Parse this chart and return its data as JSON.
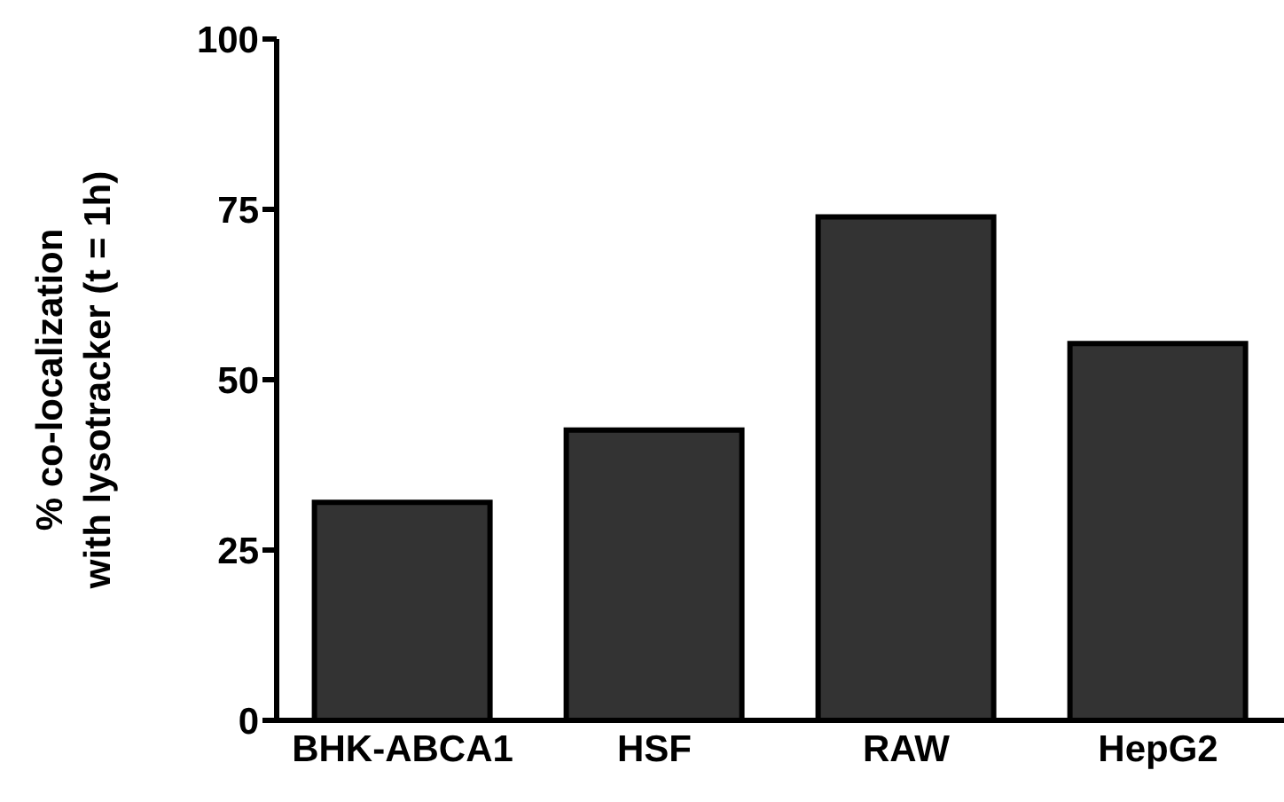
{
  "chart_data": {
    "type": "bar",
    "ylabel": "% co-localization\nwith lysotracker (t = 1h)",
    "categories": [
      "BHK-ABCA1",
      "HSF",
      "RAW",
      "HepG2"
    ],
    "values": [
      32,
      42.6,
      73.9,
      55.3
    ],
    "color": "#333333",
    "ylim": [
      0,
      100
    ],
    "yticks": [
      0,
      25,
      50,
      75,
      100
    ],
    "grid": false
  }
}
